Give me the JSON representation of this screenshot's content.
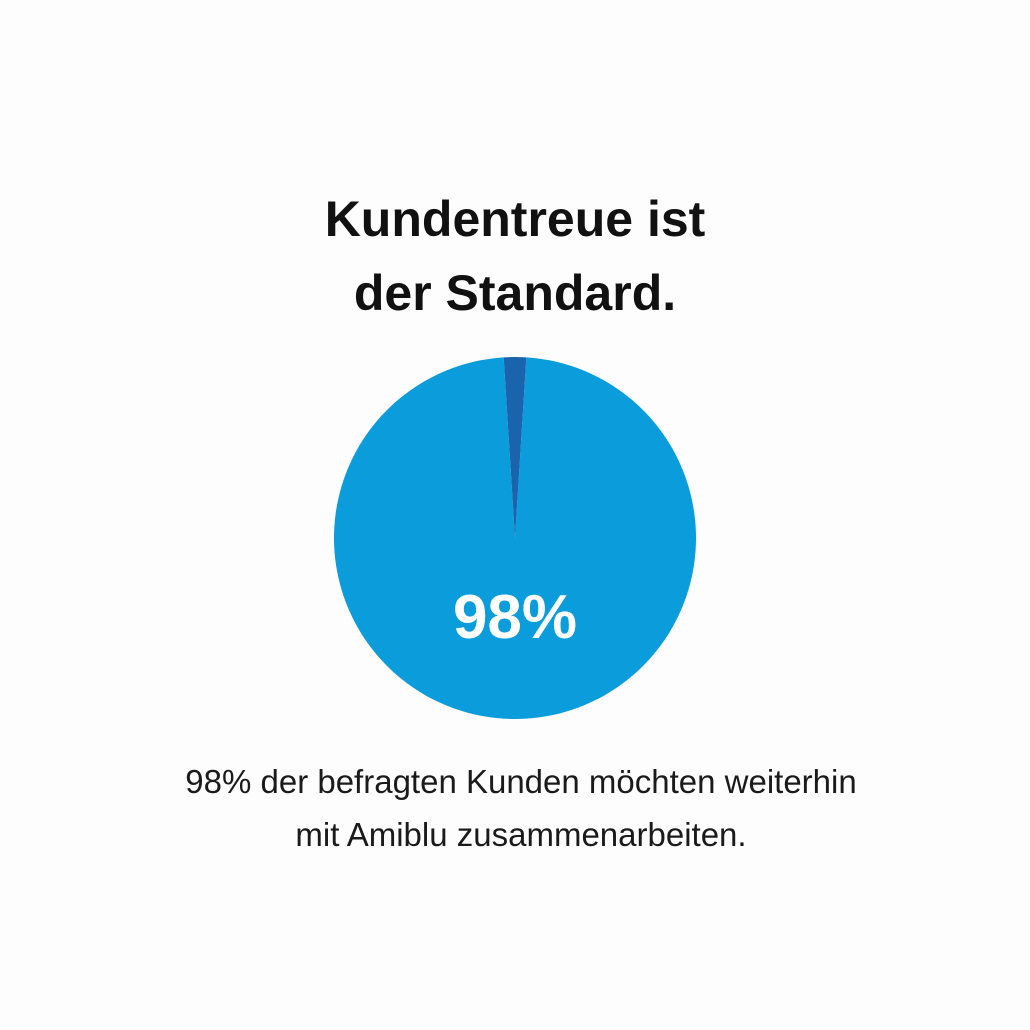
{
  "chart_data": {
    "type": "pie",
    "title": [
      "Kundentreue ist",
      "der Standard."
    ],
    "values": [
      98,
      2
    ],
    "value_labels": [
      "98%",
      null
    ],
    "colors": [
      "#0a9cdb",
      "#1a64ad"
    ],
    "caption": [
      "98% der befragten Kunden möchten weiterhin",
      "mit Amiblu zusammenarbeiten."
    ]
  }
}
